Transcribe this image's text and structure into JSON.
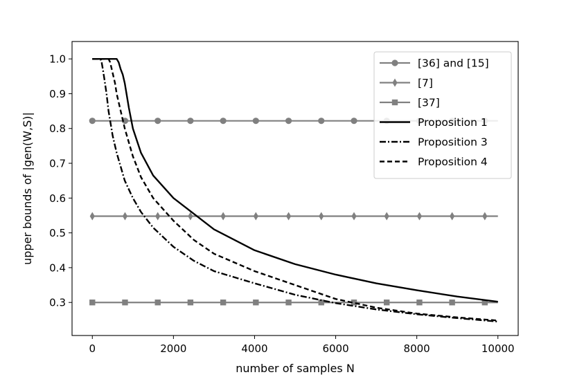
{
  "chart_data": {
    "type": "line",
    "xlabel": "number of samples N",
    "ylabel": "upper bounds of |gen(W,S)|",
    "xlim": [
      -500,
      10500
    ],
    "ylim": [
      0.205,
      1.05
    ],
    "x_ticks": [
      0,
      2000,
      4000,
      6000,
      8000,
      10000
    ],
    "x_tick_labels": [
      "0",
      "2000",
      "4000",
      "6000",
      "8000",
      "10000"
    ],
    "y_ticks": [
      0.3,
      0.4,
      0.5,
      0.6,
      0.7,
      0.8,
      0.9,
      1.0
    ],
    "y_tick_labels": [
      "0.3",
      "0.4",
      "0.5",
      "0.6",
      "0.7",
      "0.8",
      "0.9",
      "1.0"
    ],
    "grid": false,
    "legend_position": "top-right",
    "series": [
      {
        "name": "[36] and [15]",
        "legend_label": "[36] and [15]",
        "color": "#808080",
        "style": "solid",
        "marker": "circle",
        "x": [
          0,
          10000
        ],
        "y": [
          0.822,
          0.822
        ],
        "marker_x": [
          0,
          806,
          1613,
          2419,
          3226,
          4032,
          4839,
          5645,
          6452,
          7258,
          8065,
          8871,
          9677
        ]
      },
      {
        "name": "[7]",
        "legend_label": "[7]",
        "color": "#808080",
        "style": "solid",
        "marker": "diamond",
        "x": [
          0,
          10000
        ],
        "y": [
          0.548,
          0.548
        ],
        "marker_x": [
          0,
          806,
          1613,
          2419,
          3226,
          4032,
          4839,
          5645,
          6452,
          7258,
          8065,
          8871,
          9677
        ]
      },
      {
        "name": "[37]",
        "legend_label": "[37]",
        "color": "#808080",
        "style": "solid",
        "marker": "square",
        "x": [
          0,
          10000
        ],
        "y": [
          0.3,
          0.3
        ],
        "marker_x": [
          0,
          806,
          1613,
          2419,
          3226,
          4032,
          4839,
          5645,
          6452,
          7258,
          8065,
          8871,
          9677
        ]
      },
      {
        "name": "Proposition 1",
        "legend_label": "Proposition 1",
        "color": "#000000",
        "style": "solid",
        "x": [
          0,
          600,
          650,
          700,
          750,
          800,
          900,
          1000,
          1200,
          1500,
          2000,
          2500,
          3000,
          4000,
          5000,
          6000,
          7000,
          8000,
          9000,
          10000
        ],
        "y": [
          1.0,
          1.0,
          0.99,
          0.97,
          0.955,
          0.93,
          0.86,
          0.8,
          0.73,
          0.665,
          0.6,
          0.555,
          0.51,
          0.45,
          0.41,
          0.38,
          0.355,
          0.335,
          0.317,
          0.302
        ]
      },
      {
        "name": "Proposition 3",
        "legend_label": "Proposition 3",
        "color": "#000000",
        "style": "dashdot",
        "x": [
          0,
          200,
          230,
          260,
          300,
          350,
          400,
          500,
          600,
          800,
          1000,
          1200,
          1500,
          2000,
          2500,
          3000,
          4000,
          5000,
          6000,
          7000,
          8000,
          9000,
          10000
        ],
        "y": [
          1.0,
          1.0,
          0.99,
          0.97,
          0.94,
          0.9,
          0.85,
          0.78,
          0.73,
          0.65,
          0.6,
          0.56,
          0.515,
          0.46,
          0.42,
          0.39,
          0.355,
          0.322,
          0.298,
          0.28,
          0.266,
          0.255,
          0.245
        ]
      },
      {
        "name": "Proposition 4",
        "legend_label": "Proposition 4",
        "color": "#000000",
        "style": "dashed",
        "x": [
          0,
          400,
          440,
          480,
          520,
          560,
          600,
          700,
          800,
          1000,
          1200,
          1500,
          2000,
          2500,
          3000,
          4000,
          5000,
          6000,
          7000,
          8000,
          9000,
          10000
        ],
        "y": [
          1.0,
          1.0,
          0.99,
          0.97,
          0.95,
          0.93,
          0.9,
          0.85,
          0.8,
          0.72,
          0.66,
          0.6,
          0.535,
          0.48,
          0.44,
          0.39,
          0.35,
          0.31,
          0.285,
          0.268,
          0.257,
          0.248
        ]
      }
    ]
  }
}
